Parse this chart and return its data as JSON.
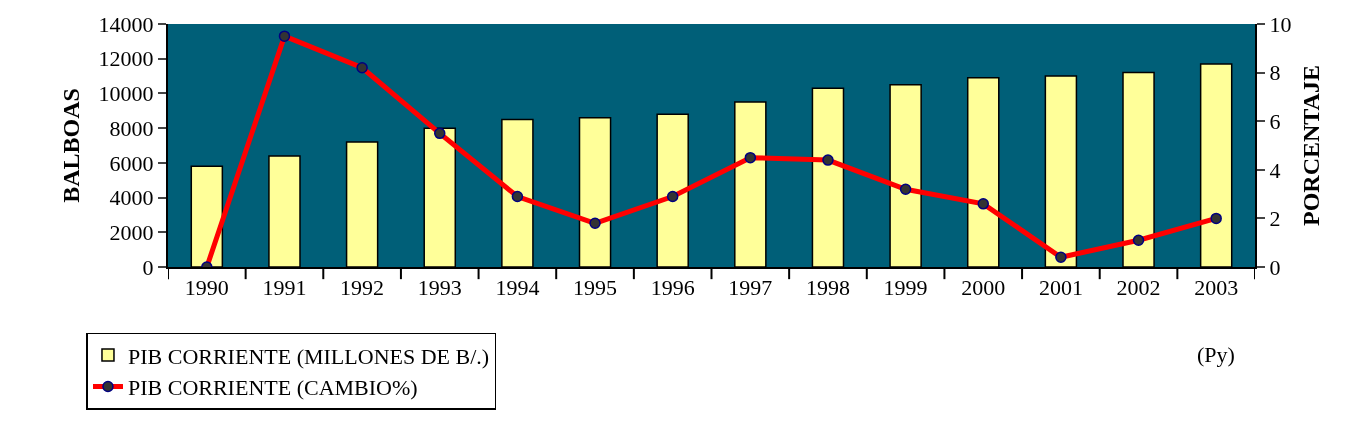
{
  "chart_data": {
    "type": "bar",
    "categories": [
      "1990",
      "1991",
      "1992",
      "1993",
      "1994",
      "1995",
      "1996",
      "1997",
      "1998",
      "1999",
      "2000",
      "2001",
      "2002",
      "2003"
    ],
    "ylabel": "BALBOAS",
    "y2label": "PORCENTAJE",
    "series": [
      {
        "name": "PIB CORRIENTE (MILLONES DE B/.)",
        "color": "#ffff99",
        "values": [
          5800,
          6400,
          7200,
          8000,
          8500,
          8600,
          8800,
          9500,
          10300,
          10500,
          10900,
          11000,
          11200,
          11700
        ]
      },
      {
        "name": "PIB CORRIENTE (CAMBIO%)",
        "type": "line",
        "axis": "y2",
        "color": "#ff0000",
        "marker": "circle",
        "values": [
          0,
          9.5,
          8.2,
          5.5,
          2.9,
          1.8,
          2.9,
          4.5,
          4.4,
          3.2,
          2.6,
          0.4,
          1.1,
          2.0
        ]
      }
    ],
    "ylim": [
      0,
      14000
    ],
    "yticks": [
      0,
      2000,
      4000,
      6000,
      8000,
      10000,
      12000,
      14000
    ],
    "y2lim": [
      0,
      10
    ],
    "y2ticks": [
      0,
      2,
      4,
      6,
      8,
      10
    ],
    "annotations": [
      "(Py)"
    ],
    "grid": false,
    "legend": "bottom"
  }
}
